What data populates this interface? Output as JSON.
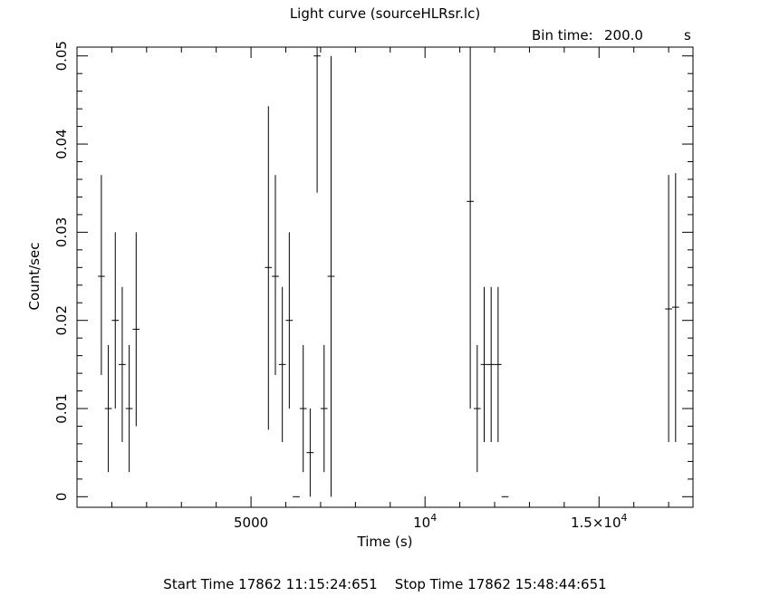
{
  "chart_data": {
    "type": "scatter",
    "title": "Light curve (sourceHLRsr.lc)",
    "bin_label": "Bin time:",
    "bin_value": "200.0",
    "bin_unit": "s",
    "xlabel": "Time (s)",
    "ylabel": "Count/sec",
    "footer": "Start Time 17862 11:15:24:651    Stop Time 17862 15:48:44:651",
    "xlim": [
      0,
      17700
    ],
    "ylim": [
      -0.0012,
      0.051
    ],
    "x_ticks": [
      {
        "value": 5000,
        "label": "5000"
      },
      {
        "value": 10000,
        "label": "10",
        "sup": "4"
      },
      {
        "value": 15000,
        "label": "1.5×10",
        "sup": "4"
      }
    ],
    "y_ticks": [
      {
        "value": 0,
        "label": "0"
      },
      {
        "value": 0.01,
        "label": "0.01"
      },
      {
        "value": 0.02,
        "label": "0.02"
      },
      {
        "value": 0.03,
        "label": "0.03"
      },
      {
        "value": 0.04,
        "label": "0.04"
      },
      {
        "value": 0.05,
        "label": "0.05"
      }
    ],
    "points": [
      {
        "x": 700,
        "y": 0.025,
        "ylo": 0.0138,
        "yhi": 0.0365
      },
      {
        "x": 900,
        "y": 0.01,
        "ylo": 0.0028,
        "yhi": 0.0172
      },
      {
        "x": 1100,
        "y": 0.02,
        "ylo": 0.01,
        "yhi": 0.03
      },
      {
        "x": 1300,
        "y": 0.015,
        "ylo": 0.0062,
        "yhi": 0.0238
      },
      {
        "x": 1500,
        "y": 0.01,
        "ylo": 0.0028,
        "yhi": 0.0172
      },
      {
        "x": 1700,
        "y": 0.019,
        "ylo": 0.008,
        "yhi": 0.03
      },
      {
        "x": 5500,
        "y": 0.026,
        "ylo": 0.0076,
        "yhi": 0.0443
      },
      {
        "x": 5700,
        "y": 0.025,
        "ylo": 0.0138,
        "yhi": 0.0365
      },
      {
        "x": 5900,
        "y": 0.015,
        "ylo": 0.0062,
        "yhi": 0.0238
      },
      {
        "x": 6100,
        "y": 0.02,
        "ylo": 0.01,
        "yhi": 0.03
      },
      {
        "x": 6300,
        "y": 0.0,
        "ylo": 0.0,
        "yhi": 0.0
      },
      {
        "x": 6500,
        "y": 0.01,
        "ylo": 0.0028,
        "yhi": 0.0172
      },
      {
        "x": 6700,
        "y": 0.005,
        "ylo": 0.0,
        "yhi": 0.01
      },
      {
        "x": 6900,
        "y": 0.05,
        "ylo": 0.0345,
        "yhi": 0.051
      },
      {
        "x": 7100,
        "y": 0.01,
        "ylo": 0.0028,
        "yhi": 0.0172
      },
      {
        "x": 7300,
        "y": 0.025,
        "ylo": 0.0,
        "yhi": 0.05
      },
      {
        "x": 11300,
        "y": 0.0335,
        "ylo": 0.01,
        "yhi": 0.051
      },
      {
        "x": 11500,
        "y": 0.01,
        "ylo": 0.0028,
        "yhi": 0.0172
      },
      {
        "x": 11700,
        "y": 0.015,
        "ylo": 0.0062,
        "yhi": 0.0238
      },
      {
        "x": 11900,
        "y": 0.015,
        "ylo": 0.0062,
        "yhi": 0.0238
      },
      {
        "x": 12100,
        "y": 0.015,
        "ylo": 0.0062,
        "yhi": 0.0238
      },
      {
        "x": 12300,
        "y": 0.0,
        "ylo": 0.0,
        "yhi": 0.0
      },
      {
        "x": 17000,
        "y": 0.0213,
        "ylo": 0.0062,
        "yhi": 0.0365
      },
      {
        "x": 17200,
        "y": 0.0215,
        "ylo": 0.0062,
        "yhi": 0.0367
      }
    ],
    "x_half_width": 100
  }
}
